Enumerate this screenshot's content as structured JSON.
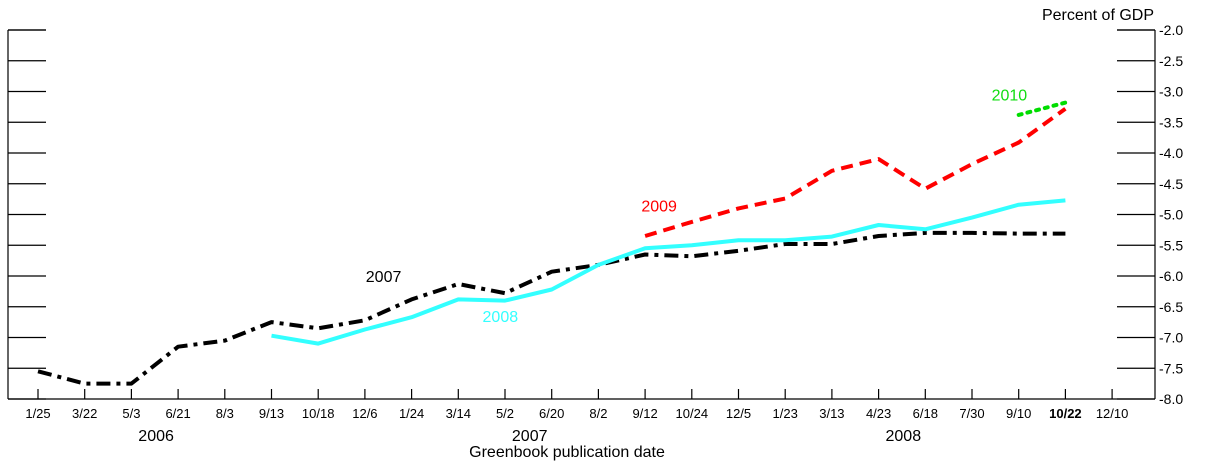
{
  "chart_data": {
    "type": "line",
    "xlabel": "Greenbook publication date",
    "ylabel": "Percent of GDP",
    "ylim": [
      -8.0,
      -2.0
    ],
    "yticks": [
      "-2.0",
      "-2.5",
      "-3.0",
      "-3.5",
      "-4.0",
      "-4.5",
      "-5.0",
      "-5.5",
      "-6.0",
      "-6.5",
      "-7.0",
      "-7.5",
      "-8.0"
    ],
    "categories": [
      "1/25",
      "3/22",
      "5/3",
      "6/21",
      "8/3",
      "9/13",
      "10/18",
      "12/6",
      "1/24",
      "3/14",
      "5/2",
      "6/20",
      "8/2",
      "9/12",
      "10/24",
      "12/5",
      "1/23",
      "3/13",
      "4/23",
      "6/18",
      "7/30",
      "9/10",
      "10/22",
      "12/10"
    ],
    "highlight_category": "10/22",
    "year_labels": [
      {
        "label": "2006",
        "center_index": 3
      },
      {
        "label": "2007",
        "center_index": 11
      },
      {
        "label": "2008",
        "center_index": 19
      }
    ],
    "grid": false,
    "series": [
      {
        "name": "2007",
        "color": "#000000",
        "style": "dashdot",
        "values": [
          -7.55,
          -7.75,
          -7.75,
          -7.15,
          -7.05,
          -6.75,
          -6.85,
          -6.72,
          -6.38,
          -6.13,
          -6.28,
          -5.93,
          -5.82,
          -5.65,
          -5.68,
          -5.59,
          -5.48,
          -5.48,
          -5.35,
          -5.3,
          -5.3,
          -5.31,
          -5.31,
          null
        ]
      },
      {
        "name": "2008",
        "color": "#33ffff",
        "style": "solid",
        "values": [
          null,
          null,
          null,
          null,
          null,
          -6.97,
          -7.1,
          -6.87,
          -6.67,
          -6.38,
          -6.4,
          -6.22,
          -5.82,
          -5.55,
          -5.5,
          -5.42,
          -5.42,
          -5.36,
          -5.17,
          -5.24,
          -5.05,
          -4.84,
          -4.77,
          null
        ]
      },
      {
        "name": "2009",
        "color": "#ff0000",
        "style": "dashed",
        "values": [
          null,
          null,
          null,
          null,
          null,
          null,
          null,
          null,
          null,
          null,
          null,
          null,
          null,
          -5.35,
          -5.12,
          -4.9,
          -4.74,
          -4.29,
          -4.1,
          -4.58,
          -4.18,
          -3.83,
          -3.28,
          null
        ]
      },
      {
        "name": "2010",
        "color": "#00dd00",
        "style": "dotted",
        "values": [
          null,
          null,
          null,
          null,
          null,
          null,
          null,
          null,
          null,
          null,
          null,
          null,
          null,
          null,
          null,
          null,
          null,
          null,
          null,
          null,
          null,
          -3.38,
          -3.18,
          null
        ]
      }
    ],
    "series_labels": [
      {
        "name": "2007",
        "at_index": 7.4,
        "at_value": -6.1
      },
      {
        "name": "2008",
        "at_index": 9.9,
        "at_value": -6.75
      },
      {
        "name": "2009",
        "at_index": 13.3,
        "at_value": -4.95
      },
      {
        "name": "2010",
        "at_index": 20.8,
        "at_value": -3.15
      }
    ]
  }
}
